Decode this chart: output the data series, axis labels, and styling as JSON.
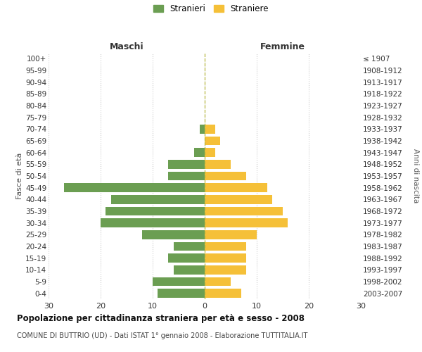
{
  "age_groups": [
    "0-4",
    "5-9",
    "10-14",
    "15-19",
    "20-24",
    "25-29",
    "30-34",
    "35-39",
    "40-44",
    "45-49",
    "50-54",
    "55-59",
    "60-64",
    "65-69",
    "70-74",
    "75-79",
    "80-84",
    "85-89",
    "90-94",
    "95-99",
    "100+"
  ],
  "birth_years": [
    "2003-2007",
    "1998-2002",
    "1993-1997",
    "1988-1992",
    "1983-1987",
    "1978-1982",
    "1973-1977",
    "1968-1972",
    "1963-1967",
    "1958-1962",
    "1953-1957",
    "1948-1952",
    "1943-1947",
    "1938-1942",
    "1933-1937",
    "1928-1932",
    "1923-1927",
    "1918-1922",
    "1913-1917",
    "1908-1912",
    "≤ 1907"
  ],
  "males": [
    9,
    10,
    6,
    7,
    6,
    12,
    20,
    19,
    18,
    27,
    7,
    7,
    2,
    0,
    1,
    0,
    0,
    0,
    0,
    0,
    0
  ],
  "females": [
    7,
    5,
    8,
    8,
    8,
    10,
    16,
    15,
    13,
    12,
    8,
    5,
    2,
    3,
    2,
    0,
    0,
    0,
    0,
    0,
    0
  ],
  "male_color": "#6b9e52",
  "female_color": "#f5c038",
  "xlim": 30,
  "title": "Popolazione per cittadinanza straniera per età e sesso - 2008",
  "subtitle": "COMUNE DI BUTTRIO (UD) - Dati ISTAT 1° gennaio 2008 - Elaborazione TUTTITALIA.IT",
  "ylabel_left": "Fasce di età",
  "ylabel_right": "Anni di nascita",
  "legend_male": "Stranieri",
  "legend_female": "Straniere",
  "header_left": "Maschi",
  "header_right": "Femmine",
  "background_color": "#ffffff",
  "grid_color": "#cccccc",
  "center_line_color": "#b8b840"
}
